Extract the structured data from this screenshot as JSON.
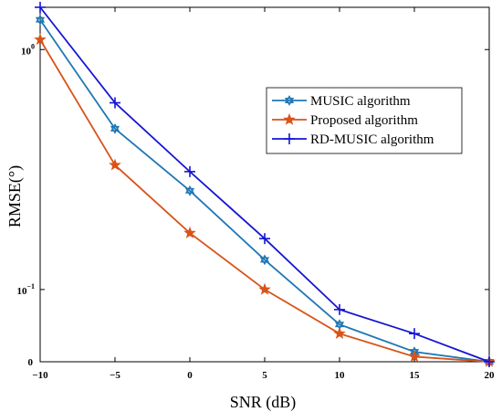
{
  "chart_data": {
    "type": "line",
    "xlabel": "SNR (dB)",
    "ylabel": "RMSE(°)",
    "x": [
      -10,
      -5,
      0,
      5,
      10,
      15,
      20
    ],
    "xlim": [
      -10,
      20
    ],
    "xticks": [
      -10,
      -5,
      0,
      5,
      10,
      15,
      20
    ],
    "xtick_labels": [
      "−10",
      "−5",
      "0",
      "5",
      "10",
      "15",
      "20"
    ],
    "yscale": "log",
    "ylim": [
      0.05,
      1.5
    ],
    "yticks": [
      {
        "value": 1,
        "base": "10",
        "exp": "0"
      },
      {
        "value": 0.1,
        "base": "10",
        "exp": "−1"
      },
      {
        "value": 0.05,
        "label": "0"
      }
    ],
    "grid": false,
    "legend": "right-top",
    "series": [
      {
        "name": "MUSIC algorithm",
        "color": "#1f78b4",
        "marker": "hexagram",
        "values": [
          1.33,
          0.468,
          0.258,
          0.133,
          0.0715,
          0.055,
          0.05
        ]
      },
      {
        "name": "Proposed algorithm",
        "color": "#d95319",
        "marker": "star",
        "values": [
          1.1,
          0.33,
          0.172,
          0.1,
          0.0655,
          0.0525,
          0.05
        ]
      },
      {
        "name": "RD-MUSIC algorithm",
        "color": "#1515d4",
        "marker": "plus",
        "values": [
          1.5,
          0.6,
          0.31,
          0.163,
          0.0825,
          0.0655,
          0.05
        ]
      }
    ]
  }
}
